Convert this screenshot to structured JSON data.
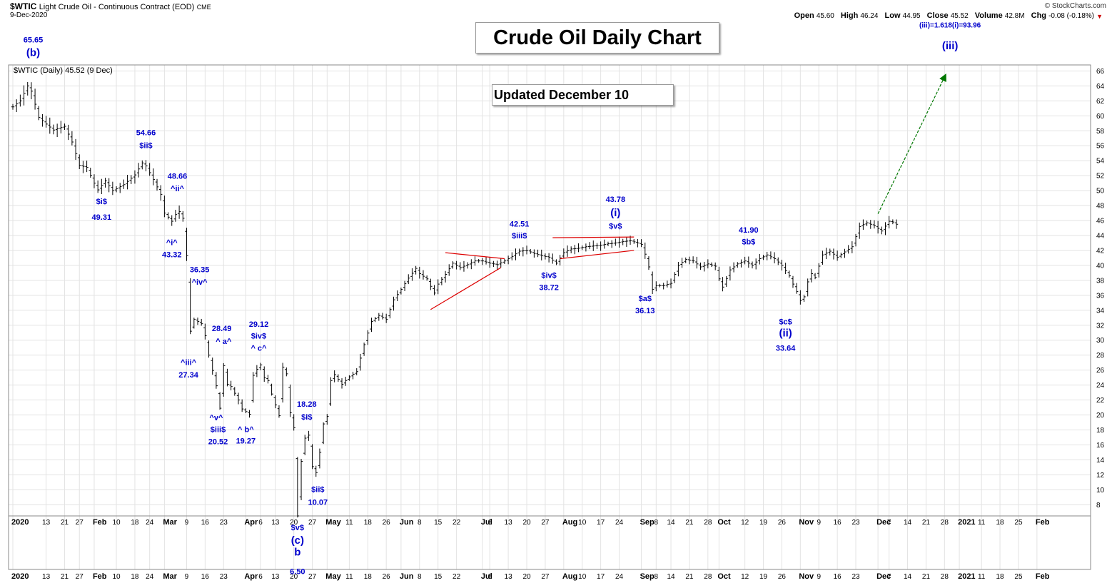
{
  "header": {
    "symbol": "$WTIC",
    "name": "Light Crude Oil - Continuous Contract (EOD)",
    "exchange": "CME",
    "date": "9-Dec-2020",
    "brand": "© StockCharts.com",
    "stats": [
      {
        "label": "Open",
        "value": "45.60"
      },
      {
        "label": "High",
        "value": "46.24"
      },
      {
        "label": "Low",
        "value": "44.95"
      },
      {
        "label": "Close",
        "value": "45.52"
      },
      {
        "label": "Volume",
        "value": "42.8M"
      },
      {
        "label": "Chg",
        "value": "-0.08 (-0.18%)"
      }
    ],
    "down_arrow": "▼"
  },
  "legend_text": "$WTIC (Daily) 45.52 (9 Dec)",
  "title_box": "Crude Oil Daily Chart",
  "update_box": "Updated December 10",
  "colors": {
    "price": "#000000",
    "annotation": "#0000cc",
    "channel": "#dd0000",
    "projection": "#007700",
    "grid": "#e3e3e3"
  },
  "chart_data": {
    "type": "ohlc",
    "series_name": "$WTIC (Daily)",
    "y_axis": {
      "side": "right",
      "ticks": [
        8,
        10,
        12,
        14,
        16,
        18,
        20,
        22,
        24,
        26,
        28,
        30,
        32,
        34,
        36,
        38,
        40,
        42,
        44,
        46,
        48,
        50,
        52,
        54,
        56,
        58,
        60,
        62,
        64,
        66
      ],
      "range": [
        6.5,
        67.5
      ]
    },
    "x_axis": {
      "ticks": [
        {
          "label": "2020",
          "x": 0
        },
        {
          "label": "13",
          "x": 9
        },
        {
          "label": "21",
          "x": 14
        },
        {
          "label": "27",
          "x": 18
        },
        {
          "label": "Feb",
          "x": 22
        },
        {
          "label": "10",
          "x": 28
        },
        {
          "label": "18",
          "x": 33
        },
        {
          "label": "24",
          "x": 37
        },
        {
          "label": "Mar",
          "x": 41
        },
        {
          "label": "9",
          "x": 47
        },
        {
          "label": "16",
          "x": 52
        },
        {
          "label": "23",
          "x": 57
        },
        {
          "label": "Apr",
          "x": 63
        },
        {
          "label": "6",
          "x": 67
        },
        {
          "label": "13",
          "x": 71
        },
        {
          "label": "20",
          "x": 76
        },
        {
          "label": "27",
          "x": 81
        },
        {
          "label": "May",
          "x": 85
        },
        {
          "label": "11",
          "x": 91
        },
        {
          "label": "18",
          "x": 96
        },
        {
          "label": "26",
          "x": 101
        },
        {
          "label": "Jun",
          "x": 105
        },
        {
          "label": "8",
          "x": 110
        },
        {
          "label": "15",
          "x": 115
        },
        {
          "label": "22",
          "x": 120
        },
        {
          "label": "Jul",
          "x": 127
        },
        {
          "label": "6",
          "x": 129
        },
        {
          "label": "13",
          "x": 134
        },
        {
          "label": "20",
          "x": 139
        },
        {
          "label": "27",
          "x": 144
        },
        {
          "label": "Aug",
          "x": 149
        },
        {
          "label": "10",
          "x": 154
        },
        {
          "label": "17",
          "x": 159
        },
        {
          "label": "24",
          "x": 164
        },
        {
          "label": "Sep",
          "x": 170
        },
        {
          "label": "8",
          "x": 174
        },
        {
          "label": "14",
          "x": 178
        },
        {
          "label": "21",
          "x": 183
        },
        {
          "label": "28",
          "x": 188
        },
        {
          "label": "Oct",
          "x": 191
        },
        {
          "label": "12",
          "x": 198
        },
        {
          "label": "19",
          "x": 203
        },
        {
          "label": "26",
          "x": 208
        },
        {
          "label": "Nov",
          "x": 213
        },
        {
          "label": "9",
          "x": 218
        },
        {
          "label": "16",
          "x": 223
        },
        {
          "label": "23",
          "x": 228
        },
        {
          "label": "Dec",
          "x": 234
        },
        {
          "label": "7",
          "x": 237
        },
        {
          "label": "14",
          "x": 242
        },
        {
          "label": "21",
          "x": 247
        },
        {
          "label": "28",
          "x": 252
        },
        {
          "label": "2021",
          "x": 256
        },
        {
          "label": "11",
          "x": 262
        },
        {
          "label": "18",
          "x": 267
        },
        {
          "label": "25",
          "x": 272
        },
        {
          "label": "Feb",
          "x": 277
        }
      ],
      "range": [
        0,
        283
      ]
    },
    "keypoints": [
      {
        "x": 0,
        "c": 61.2
      },
      {
        "x": 2,
        "c": 62
      },
      {
        "x": 4,
        "c": 64
      },
      {
        "x": 5,
        "c": 63.3
      },
      {
        "x": 7,
        "c": 59.8
      },
      {
        "x": 9,
        "c": 58.9
      },
      {
        "x": 11,
        "c": 58.1
      },
      {
        "x": 14,
        "c": 58.6
      },
      {
        "x": 16,
        "c": 56.5
      },
      {
        "x": 18,
        "c": 53.4
      },
      {
        "x": 20,
        "c": 53.1
      },
      {
        "x": 22,
        "c": 51
      },
      {
        "x": 23,
        "c": 50.1
      },
      {
        "x": 25,
        "c": 51.3
      },
      {
        "x": 27,
        "c": 50
      },
      {
        "x": 30,
        "c": 50.8
      },
      {
        "x": 33,
        "c": 52.1
      },
      {
        "x": 35,
        "c": 53.7
      },
      {
        "x": 36,
        "c": 53.3
      },
      {
        "x": 38,
        "c": 51.5
      },
      {
        "x": 40,
        "c": 49.5
      },
      {
        "x": 41,
        "c": 47
      },
      {
        "x": 43,
        "c": 45.9
      },
      {
        "x": 44,
        "c": 46.8
      },
      {
        "x": 45,
        "c": 47.2
      },
      {
        "x": 46,
        "c": 46.3
      },
      {
        "x": 47,
        "c": 41.3
      },
      {
        "x": 48,
        "c": 31.2
      },
      {
        "x": 49,
        "c": 32.8
      },
      {
        "x": 51,
        "c": 32.2
      },
      {
        "x": 52,
        "c": 30.6
      },
      {
        "x": 53,
        "c": 28
      },
      {
        "x": 55,
        "c": 23.9
      },
      {
        "x": 56,
        "c": 20.9
      },
      {
        "x": 57,
        "c": 26.6
      },
      {
        "x": 58,
        "c": 24.1
      },
      {
        "x": 59,
        "c": 23.8
      },
      {
        "x": 61,
        "c": 22
      },
      {
        "x": 62,
        "c": 20.8
      },
      {
        "x": 64,
        "c": 20.1
      },
      {
        "x": 65,
        "c": 25.3
      },
      {
        "x": 66,
        "c": 26.1
      },
      {
        "x": 67,
        "c": 26.7
      },
      {
        "x": 68,
        "c": 25
      },
      {
        "x": 69,
        "c": 24.6
      },
      {
        "x": 70,
        "c": 22.8
      },
      {
        "x": 72,
        "c": 19.9
      },
      {
        "x": 73,
        "c": 26.4
      },
      {
        "x": 74,
        "c": 25.5
      },
      {
        "x": 75,
        "c": 20.3
      },
      {
        "x": 76,
        "c": 18.3
      },
      {
        "x": 77,
        "c": 6.5
      },
      {
        "x": 78,
        "c": 13.8
      },
      {
        "x": 79,
        "c": 16.9
      },
      {
        "x": 80,
        "c": 17.3
      },
      {
        "x": 81,
        "c": 13.1
      },
      {
        "x": 82,
        "c": 12.3
      },
      {
        "x": 83,
        "c": 15
      },
      {
        "x": 84,
        "c": 18.8
      },
      {
        "x": 85,
        "c": 19.8
      },
      {
        "x": 86,
        "c": 24.6
      },
      {
        "x": 87,
        "c": 25.4
      },
      {
        "x": 89,
        "c": 24.1
      },
      {
        "x": 91,
        "c": 25.1
      },
      {
        "x": 93,
        "c": 25.8
      },
      {
        "x": 95,
        "c": 29.4
      },
      {
        "x": 97,
        "c": 32.5
      },
      {
        "x": 99,
        "c": 33.3
      },
      {
        "x": 101,
        "c": 32.8
      },
      {
        "x": 103,
        "c": 35.4
      },
      {
        "x": 105,
        "c": 36.8
      },
      {
        "x": 107,
        "c": 38.3
      },
      {
        "x": 109,
        "c": 39.6
      },
      {
        "x": 110,
        "c": 38.9
      },
      {
        "x": 112,
        "c": 38.2
      },
      {
        "x": 113,
        "c": 37.2
      },
      {
        "x": 114,
        "c": 36.3
      },
      {
        "x": 115,
        "c": 37.5
      },
      {
        "x": 117,
        "c": 38.8
      },
      {
        "x": 119,
        "c": 40.3
      },
      {
        "x": 121,
        "c": 39.7
      },
      {
        "x": 123,
        "c": 40.1
      },
      {
        "x": 125,
        "c": 40.6
      },
      {
        "x": 127,
        "c": 40.6
      },
      {
        "x": 129,
        "c": 40.3
      },
      {
        "x": 131,
        "c": 40.1
      },
      {
        "x": 133,
        "c": 40.6
      },
      {
        "x": 135,
        "c": 41.2
      },
      {
        "x": 137,
        "c": 41.9
      },
      {
        "x": 139,
        "c": 42
      },
      {
        "x": 141,
        "c": 41.6
      },
      {
        "x": 143,
        "c": 41.3
      },
      {
        "x": 145,
        "c": 41.1
      },
      {
        "x": 147,
        "c": 40.3
      },
      {
        "x": 149,
        "c": 41.7
      },
      {
        "x": 151,
        "c": 42.2
      },
      {
        "x": 153,
        "c": 42.3
      },
      {
        "x": 155,
        "c": 42.5
      },
      {
        "x": 157,
        "c": 42.6
      },
      {
        "x": 159,
        "c": 42.7
      },
      {
        "x": 161,
        "c": 42.9
      },
      {
        "x": 163,
        "c": 43
      },
      {
        "x": 165,
        "c": 43.2
      },
      {
        "x": 167,
        "c": 43.3
      },
      {
        "x": 169,
        "c": 43
      },
      {
        "x": 170,
        "c": 42.8
      },
      {
        "x": 171,
        "c": 41.5
      },
      {
        "x": 172,
        "c": 39.8
      },
      {
        "x": 173,
        "c": 36.8
      },
      {
        "x": 174,
        "c": 37.3
      },
      {
        "x": 176,
        "c": 37.3
      },
      {
        "x": 178,
        "c": 37.6
      },
      {
        "x": 180,
        "c": 40
      },
      {
        "x": 182,
        "c": 40.8
      },
      {
        "x": 184,
        "c": 40.6
      },
      {
        "x": 186,
        "c": 39.8
      },
      {
        "x": 188,
        "c": 40.2
      },
      {
        "x": 190,
        "c": 39.9
      },
      {
        "x": 191,
        "c": 38.2
      },
      {
        "x": 192,
        "c": 37.1
      },
      {
        "x": 194,
        "c": 39.4
      },
      {
        "x": 196,
        "c": 40.2
      },
      {
        "x": 198,
        "c": 40.6
      },
      {
        "x": 200,
        "c": 40
      },
      {
        "x": 202,
        "c": 40.9
      },
      {
        "x": 204,
        "c": 41.4
      },
      {
        "x": 206,
        "c": 40.9
      },
      {
        "x": 208,
        "c": 40
      },
      {
        "x": 210,
        "c": 38.6
      },
      {
        "x": 211,
        "c": 37.5
      },
      {
        "x": 212,
        "c": 36.5
      },
      {
        "x": 213,
        "c": 35.3
      },
      {
        "x": 214,
        "c": 35.8
      },
      {
        "x": 215,
        "c": 37.8
      },
      {
        "x": 216,
        "c": 38.9
      },
      {
        "x": 217,
        "c": 38.4
      },
      {
        "x": 219,
        "c": 41.4
      },
      {
        "x": 221,
        "c": 41.9
      },
      {
        "x": 223,
        "c": 41.1
      },
      {
        "x": 225,
        "c": 41.8
      },
      {
        "x": 227,
        "c": 42.5
      },
      {
        "x": 229,
        "c": 45.2
      },
      {
        "x": 231,
        "c": 45.7
      },
      {
        "x": 233,
        "c": 45.3
      },
      {
        "x": 235,
        "c": 44.6
      },
      {
        "x": 237,
        "c": 45.9
      },
      {
        "x": 238,
        "c": 45.8
      },
      {
        "x": 239,
        "c": 45.5
      }
    ],
    "wave_labels": [
      {
        "text": "65.65",
        "x": 5.5,
        "y": 69.8,
        "size": 11
      },
      {
        "text": "(b)",
        "x": 5.5,
        "y": 68,
        "size": 15
      },
      {
        "text": "54.66",
        "x": 36,
        "y": 57.4,
        "size": 11
      },
      {
        "text": "$ii$",
        "x": 36,
        "y": 55.7,
        "size": 11
      },
      {
        "text": "$i$",
        "x": 24,
        "y": 48.2,
        "size": 11
      },
      {
        "text": "49.31",
        "x": 24,
        "y": 46.1,
        "size": 11
      },
      {
        "text": "48.66",
        "x": 44.5,
        "y": 51.6,
        "size": 11
      },
      {
        "text": "^ii^",
        "x": 44.5,
        "y": 49.9,
        "size": 11
      },
      {
        "text": "^i^",
        "x": 43,
        "y": 42.7,
        "size": 11
      },
      {
        "text": "43.32",
        "x": 43,
        "y": 41.1,
        "size": 11
      },
      {
        "text": "36.35",
        "x": 50.5,
        "y": 39.1,
        "size": 11
      },
      {
        "text": "^iv^",
        "x": 50.5,
        "y": 37.4,
        "size": 11
      },
      {
        "text": "^iii^",
        "x": 47.5,
        "y": 26.7,
        "size": 11
      },
      {
        "text": "27.34",
        "x": 47.5,
        "y": 25,
        "size": 11
      },
      {
        "text": "28.49",
        "x": 56.5,
        "y": 31.2,
        "size": 11
      },
      {
        "text": "^ a^",
        "x": 57,
        "y": 29.5,
        "size": 11
      },
      {
        "text": "29.12",
        "x": 66.5,
        "y": 31.8,
        "size": 11
      },
      {
        "text": "$iv$",
        "x": 66.5,
        "y": 30.2,
        "size": 11
      },
      {
        "text": "^ c^",
        "x": 66.5,
        "y": 28.6,
        "size": 11
      },
      {
        "text": "^v^",
        "x": 55,
        "y": 19.3,
        "size": 11
      },
      {
        "text": "$iii$",
        "x": 55.5,
        "y": 17.7,
        "size": 11
      },
      {
        "text": "20.52",
        "x": 55.5,
        "y": 16.1,
        "size": 11
      },
      {
        "text": "^ b^",
        "x": 63,
        "y": 17.7,
        "size": 11
      },
      {
        "text": "19.27",
        "x": 63,
        "y": 16.2,
        "size": 11
      },
      {
        "text": "18.28",
        "x": 79.5,
        "y": 21.1,
        "size": 11
      },
      {
        "text": "$i$",
        "x": 79.5,
        "y": 19.4,
        "size": 11
      },
      {
        "text": "$ii$",
        "x": 82.5,
        "y": 9.7,
        "size": 11
      },
      {
        "text": "10.07",
        "x": 82.5,
        "y": 8,
        "size": 11
      },
      {
        "text": "$v$",
        "x": 77,
        "y": 4.6,
        "size": 11
      },
      {
        "text": "(c)",
        "x": 77,
        "y": 2.8,
        "size": 15
      },
      {
        "text": "b",
        "x": 77,
        "y": 1.2,
        "size": 15
      },
      {
        "text": "6.50",
        "x": 77,
        "y": -1.3,
        "size": 11
      },
      {
        "text": "42.51",
        "x": 137,
        "y": 45.2,
        "size": 11
      },
      {
        "text": "$iii$",
        "x": 137,
        "y": 43.6,
        "size": 11
      },
      {
        "text": "$iv$",
        "x": 145,
        "y": 38.3,
        "size": 11
      },
      {
        "text": "38.72",
        "x": 145,
        "y": 36.7,
        "size": 11
      },
      {
        "text": "43.78",
        "x": 163,
        "y": 48.5,
        "size": 11
      },
      {
        "text": "(i)",
        "x": 163,
        "y": 46.6,
        "size": 15
      },
      {
        "text": "$v$",
        "x": 163,
        "y": 44.9,
        "size": 11
      },
      {
        "text": "$a$",
        "x": 171,
        "y": 35.2,
        "size": 11
      },
      {
        "text": "36.13",
        "x": 171,
        "y": 33.6,
        "size": 11
      },
      {
        "text": "41.90",
        "x": 199,
        "y": 44.4,
        "size": 11
      },
      {
        "text": "$b$",
        "x": 199,
        "y": 42.8,
        "size": 11
      },
      {
        "text": "$c$",
        "x": 209,
        "y": 32.1,
        "size": 11
      },
      {
        "text": "(ii)",
        "x": 209,
        "y": 30.5,
        "size": 15
      },
      {
        "text": "33.64",
        "x": 209,
        "y": 28.6,
        "size": 11
      },
      {
        "text": "(iii)=1.618(i)=93.96",
        "x": 253.5,
        "y": 71.8,
        "size": 10
      },
      {
        "text": "(iii)",
        "x": 253.5,
        "y": 68.9,
        "size": 15
      }
    ],
    "trendlines": [
      {
        "kind": "channel",
        "from": [
          117,
          41.7
        ],
        "to": [
          133,
          40.9
        ]
      },
      {
        "kind": "channel",
        "from": [
          113,
          34.1
        ],
        "to": [
          132,
          39.7
        ]
      },
      {
        "kind": "channel",
        "from": [
          146,
          43.7
        ],
        "to": [
          168,
          43.8
        ]
      },
      {
        "kind": "channel",
        "from": [
          148,
          40.9
        ],
        "to": [
          168,
          42
        ]
      },
      {
        "kind": "projection",
        "from": [
          234,
          46.9
        ],
        "to": [
          252,
          65.2
        ]
      }
    ]
  }
}
